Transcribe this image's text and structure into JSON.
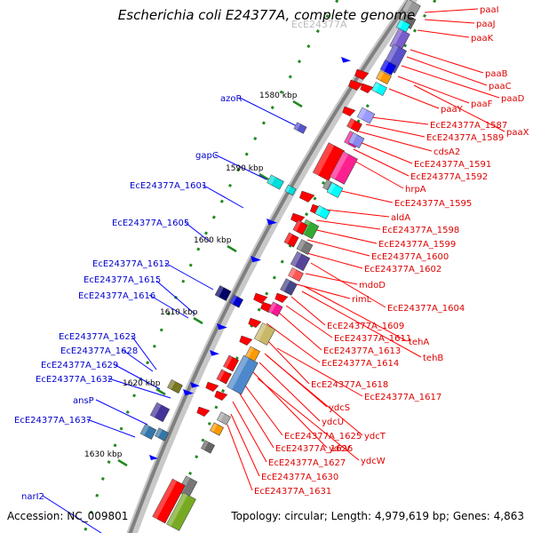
{
  "title": "Escherichia coli E24377A, complete genome",
  "footer": {
    "accession": "Accession: NC_009801",
    "summary": "Topology: circular; Length: 4,979,619 bp; Genes: 4,863"
  },
  "colors": {
    "reverse_strand_label": "#0000cc",
    "forward_strand_label": "#dd0000",
    "backbone": "#808080",
    "tick": "#228822"
  },
  "kbp_ticks": [
    "1580 kbp",
    "1590 kbp",
    "1600 kbp",
    "1610 kbp",
    "1620 kbp",
    "1630 kbp"
  ],
  "right_labels": [
    "paaI",
    "paaJ",
    "paaK",
    "paaB",
    "paaC",
    "paaD",
    "paaF",
    "paaY",
    "paaX",
    "EcE24377A_1587",
    "EcE24377A_1589",
    "cdsA2",
    "EcE24377A_1591",
    "EcE24377A_1592",
    "hrpA",
    "EcE24377A_1595",
    "aldA",
    "EcE24377A_1598",
    "EcE24377A_1599",
    "EcE24377A_1600",
    "EcE24377A_1602",
    "mdoD",
    "rimL",
    "EcE24377A_1604",
    "EcE24377A_1609",
    "EcE24377A_1611",
    "tehA",
    "EcE24377A_1613",
    "tehB",
    "EcE24377A_1614",
    "EcE24377A_1618",
    "EcE24377A_1617",
    "ydcS",
    "ydcU",
    "ydcT",
    "EcE24377A_1625",
    "ydcV",
    "EcE24377A_1626",
    "ydcW",
    "EcE24377A_1627",
    "EcE24377A_1630",
    "EcE24377A_1631"
  ],
  "left_labels": [
    "azoR",
    "gapC",
    "EcE24377A_1601",
    "EcE24377A_1605",
    "EcE24377A_1612",
    "EcE24377A_1615",
    "EcE24377A_1616",
    "EcE24377A_1623",
    "EcE24377A_1628",
    "EcE24377A_1629",
    "EcE24377A_1632",
    "ansP",
    "EcE24377A_1637",
    "narI2"
  ],
  "faded_label": "EcE24377A"
}
